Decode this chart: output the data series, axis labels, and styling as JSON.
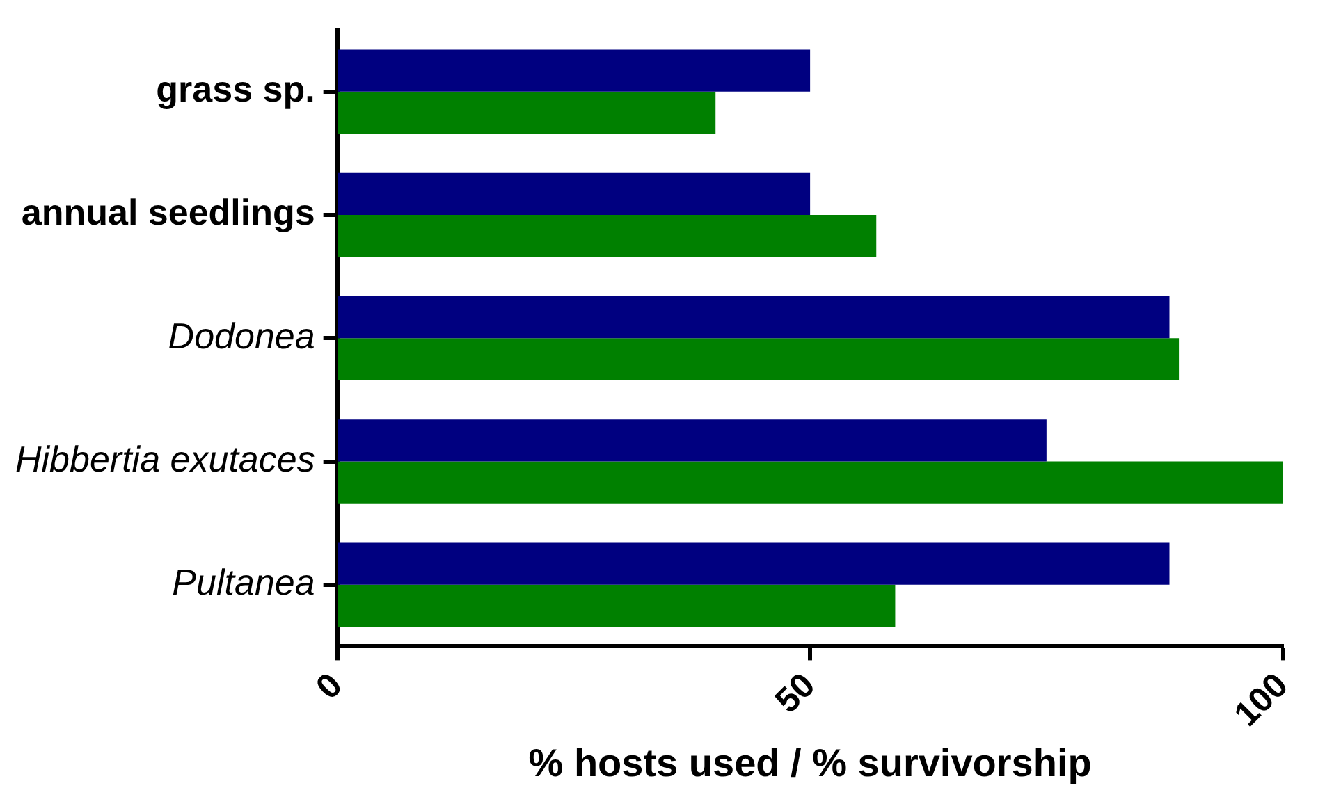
{
  "chart_data": {
    "type": "bar",
    "orientation": "horizontal",
    "xlabel": "% hosts used / % survivorship",
    "categories": [
      "grass sp.",
      "annual seedlings",
      "Dodonea",
      "Hibbertia exutaces",
      "Pultanea"
    ],
    "series": [
      {
        "color": "#000080",
        "values": [
          50,
          50,
          88,
          75,
          88
        ]
      },
      {
        "color": "#008000",
        "values": [
          40,
          57,
          89,
          100,
          59
        ]
      }
    ],
    "xlim": [
      0,
      100
    ],
    "xticks": [
      0,
      50,
      100
    ],
    "grid": false,
    "legend": false
  }
}
